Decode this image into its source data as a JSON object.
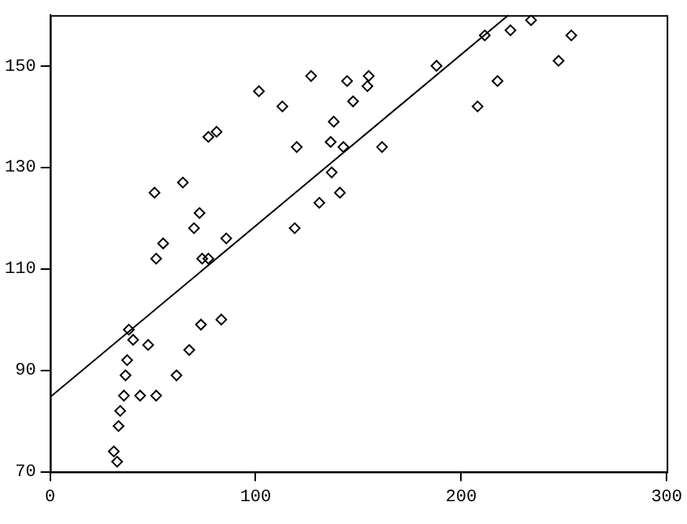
{
  "chart_data": {
    "type": "scatter",
    "marker": "diamond",
    "grid": false,
    "legend": false,
    "xlim": [
      0,
      300
    ],
    "xticks": [
      0,
      100,
      200,
      300
    ],
    "ylim": [
      70,
      160
    ],
    "yticks": [
      70,
      90,
      110,
      130,
      150
    ],
    "series": [
      {
        "color": "#000000",
        "x": [
          50.8,
          64.6,
          72.7,
          70,
          55,
          51.6,
          74,
          77,
          85.7,
          83.3,
          73.4,
          67.7,
          61.5,
          47.7,
          38.3,
          40.4,
          37.5,
          36.7,
          35.9,
          43.8,
          51.6,
          34.1,
          33.3,
          31,
          32.6,
          77,
          81,
          101.6,
          113,
          127,
          120,
          144.5,
          155,
          154.4,
          147.4,
          138,
          136.5,
          142.7,
          161.5,
          137,
          141,
          131,
          119,
          188,
          211.5,
          224,
          234,
          253.6,
          247.4,
          217.7,
          208
        ],
        "values": [
          125,
          127,
          121,
          118,
          115,
          112,
          112,
          112,
          116,
          100,
          99,
          94,
          89,
          95,
          98,
          96,
          92,
          89,
          85,
          85,
          85,
          82,
          79,
          74,
          72,
          136,
          137,
          145,
          142,
          148,
          134,
          147,
          148,
          146,
          143,
          139,
          135,
          134,
          134,
          129,
          125,
          123,
          118,
          150,
          156,
          157,
          159,
          156,
          151,
          147,
          142
        ]
      },
      {
        "type": "line",
        "color": "#000000",
        "marker": "none",
        "x": [
          0,
          223
        ],
        "values": [
          84.7,
          160
        ]
      }
    ]
  }
}
